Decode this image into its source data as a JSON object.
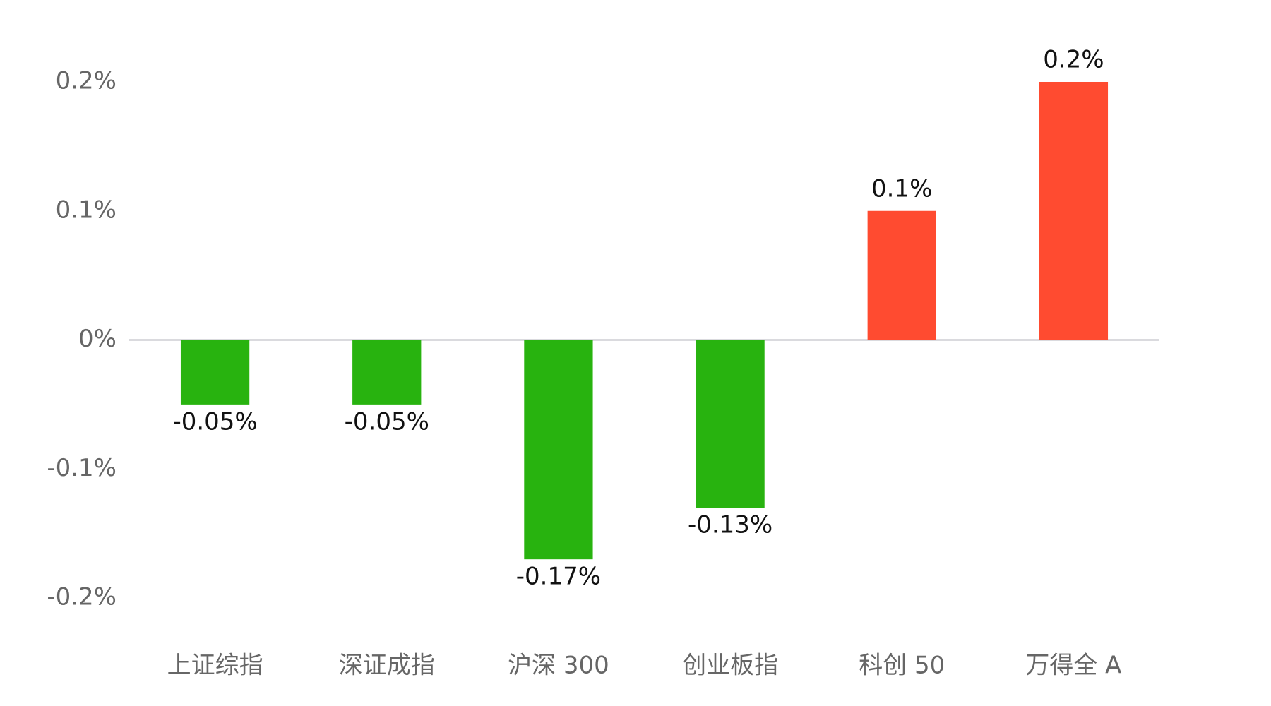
{
  "chart_data": {
    "type": "bar",
    "categories": [
      "上证综指",
      "深证成指",
      "沪深 300",
      "创业板指",
      "科创 50",
      "万得全 A"
    ],
    "values": [
      -0.05,
      -0.05,
      -0.17,
      -0.13,
      0.1,
      0.2
    ],
    "value_labels": [
      "-0.05%",
      "-0.05%",
      "-0.17%",
      "-0.13%",
      "0.1%",
      "0.2%"
    ],
    "colors": [
      "#28b30f",
      "#28b30f",
      "#28b30f",
      "#28b30f",
      "#ff4b30",
      "#ff4b30"
    ],
    "ylim": [
      -0.2,
      0.2
    ],
    "yticks": [
      {
        "value": 0.2,
        "label": "0.2%"
      },
      {
        "value": 0.1,
        "label": "0.1%"
      },
      {
        "value": 0,
        "label": "0%"
      },
      {
        "value": -0.1,
        "label": "-0.1%"
      },
      {
        "value": -0.2,
        "label": "-0.2%"
      }
    ],
    "grid": false
  }
}
